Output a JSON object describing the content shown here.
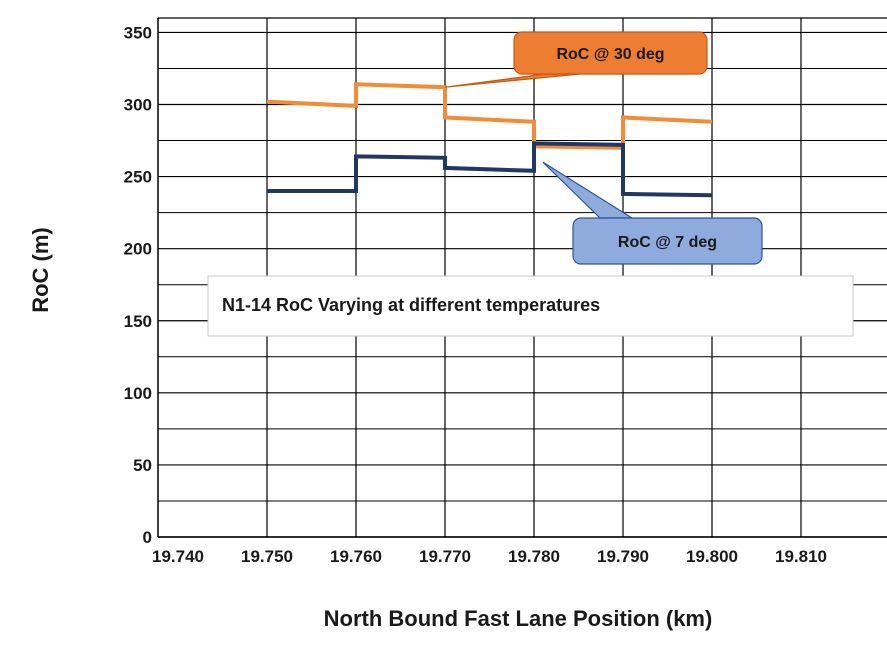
{
  "chart_data": {
    "type": "line",
    "title": "N1-14 RoC Varying  at  different temperatures",
    "xlabel": "North Bound Fast Lane  Position (km)",
    "ylabel": "RoC (m)",
    "xlim": [
      19.74,
      19.815
    ],
    "ylim": [
      0,
      360
    ],
    "x_ticks": [
      "19.740",
      "19.750",
      "19.760",
      "19.770",
      "19.780",
      "19.790",
      "19.800",
      "19.810"
    ],
    "y_ticks": [
      "0",
      "50",
      "100",
      "150",
      "200",
      "250",
      "300",
      "350"
    ],
    "grid": true,
    "series": [
      {
        "name": "RoC @ 30 deg",
        "color": "#f28c38",
        "points": [
          [
            19.75,
            302
          ],
          [
            19.76,
            299
          ],
          [
            19.76,
            314
          ],
          [
            19.77,
            312
          ],
          [
            19.77,
            291
          ],
          [
            19.78,
            288
          ],
          [
            19.78,
            271
          ],
          [
            19.79,
            270
          ],
          [
            19.79,
            291
          ],
          [
            19.8,
            288
          ]
        ]
      },
      {
        "name": "RoC @ 7 deg",
        "color": "#1f3864",
        "points": [
          [
            19.75,
            240
          ],
          [
            19.76,
            240
          ],
          [
            19.76,
            264
          ],
          [
            19.77,
            263
          ],
          [
            19.77,
            256
          ],
          [
            19.78,
            254
          ],
          [
            19.78,
            273
          ],
          [
            19.79,
            272
          ],
          [
            19.79,
            238
          ],
          [
            19.8,
            237
          ]
        ]
      }
    ],
    "annotations": [
      {
        "text": "RoC @ 30 deg",
        "fill": "#ed7d31",
        "stroke": "#c55a11",
        "target": [
          19.77,
          312
        ]
      },
      {
        "text": "RoC @ 7 deg",
        "fill": "#8faadc",
        "stroke": "#2f5597",
        "target": [
          19.781,
          260
        ]
      }
    ],
    "title_box": true
  }
}
